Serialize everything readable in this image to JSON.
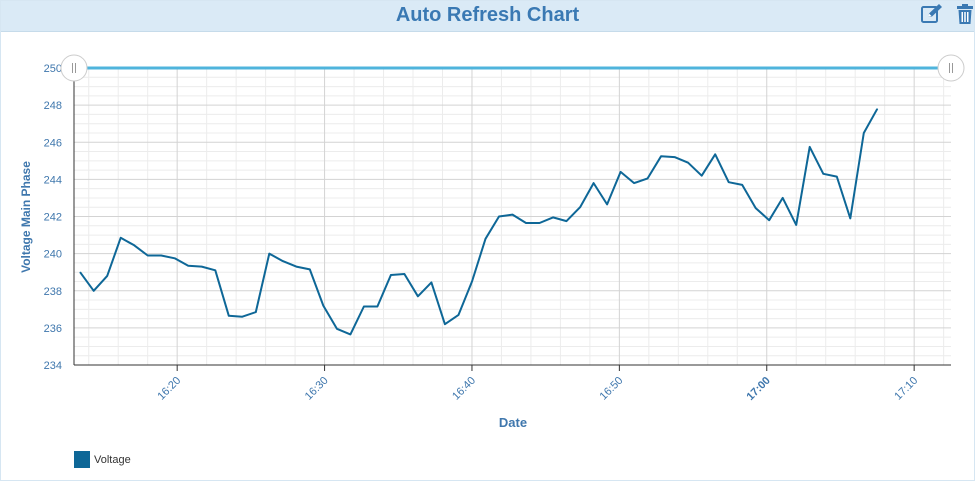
{
  "panel": {
    "title": "Auto Refresh Chart",
    "edit_icon": "edit-icon",
    "delete_icon": "trash-icon"
  },
  "colors": {
    "series": "#0e6797",
    "slider_line": "#4fb4dc",
    "header_bg": "#daeaf6",
    "title": "#3a79b3",
    "axis_text": "#3f77ad",
    "grid_major": "#d3d3d3",
    "grid_minor": "#ececec"
  },
  "chart_data": {
    "type": "line",
    "xlabel": "Date",
    "ylabel": "Voltage Main Phase",
    "ylim": [
      234,
      250
    ],
    "yticks": [
      234,
      236,
      238,
      240,
      242,
      244,
      246,
      248,
      250
    ],
    "xlim": [
      "16:13:00",
      "17:12:30"
    ],
    "xticks": [
      {
        "t": "16:20:00",
        "label": "16:20",
        "bold": false
      },
      {
        "t": "16:30:00",
        "label": "16:30",
        "bold": false
      },
      {
        "t": "16:40:00",
        "label": "16:40",
        "bold": false
      },
      {
        "t": "16:50:00",
        "label": "16:50",
        "bold": false
      },
      {
        "t": "17:00:00",
        "label": "17:00",
        "bold": true
      },
      {
        "t": "17:10:00",
        "label": "17:10",
        "bold": false
      }
    ],
    "range_selector": {
      "from": 250,
      "to": 250
    },
    "grid": true,
    "legend_position": "bottom-left",
    "series": [
      {
        "name": "Voltage",
        "color": "#0e6797",
        "points": [
          [
            "16:13:25",
            239.0
          ],
          [
            "16:14:20",
            238.0
          ],
          [
            "16:15:15",
            238.8
          ],
          [
            "16:16:10",
            240.85
          ],
          [
            "16:17:05",
            240.45
          ],
          [
            "16:18:00",
            239.9
          ],
          [
            "16:18:55",
            239.9
          ],
          [
            "16:19:50",
            239.75
          ],
          [
            "16:20:45",
            239.35
          ],
          [
            "16:21:40",
            239.3
          ],
          [
            "16:22:35",
            239.1
          ],
          [
            "16:23:30",
            236.65
          ],
          [
            "16:24:25",
            236.6
          ],
          [
            "16:25:20",
            236.85
          ],
          [
            "16:26:15",
            240.0
          ],
          [
            "16:27:10",
            239.6
          ],
          [
            "16:28:05",
            239.3
          ],
          [
            "16:29:00",
            239.15
          ],
          [
            "16:29:55",
            237.2
          ],
          [
            "16:30:50",
            235.95
          ],
          [
            "16:31:45",
            235.65
          ],
          [
            "16:32:40",
            237.15
          ],
          [
            "16:33:35",
            237.15
          ],
          [
            "16:34:30",
            238.85
          ],
          [
            "16:35:25",
            238.9
          ],
          [
            "16:36:20",
            237.7
          ],
          [
            "16:37:15",
            238.45
          ],
          [
            "16:38:10",
            236.2
          ],
          [
            "16:39:05",
            236.7
          ],
          [
            "16:40:00",
            238.5
          ],
          [
            "16:40:55",
            240.8
          ],
          [
            "16:41:50",
            242.0
          ],
          [
            "16:42:45",
            242.1
          ],
          [
            "16:43:40",
            241.65
          ],
          [
            "16:44:35",
            241.65
          ],
          [
            "16:45:30",
            241.95
          ],
          [
            "16:46:25",
            241.75
          ],
          [
            "16:47:20",
            242.5
          ],
          [
            "16:48:15",
            243.8
          ],
          [
            "16:49:10",
            242.65
          ],
          [
            "16:50:05",
            244.4
          ],
          [
            "16:51:00",
            243.8
          ],
          [
            "16:51:55",
            244.05
          ],
          [
            "16:52:50",
            245.25
          ],
          [
            "16:53:45",
            245.2
          ],
          [
            "16:54:40",
            244.9
          ],
          [
            "16:55:35",
            244.2
          ],
          [
            "16:56:30",
            245.35
          ],
          [
            "16:57:25",
            243.85
          ],
          [
            "16:58:20",
            243.7
          ],
          [
            "16:59:15",
            242.45
          ],
          [
            "17:00:10",
            241.8
          ],
          [
            "17:01:05",
            243.0
          ],
          [
            "17:02:00",
            241.55
          ],
          [
            "17:02:55",
            245.75
          ],
          [
            "17:03:50",
            244.3
          ],
          [
            "17:04:45",
            244.15
          ],
          [
            "17:05:40",
            241.9
          ],
          [
            "17:06:35",
            246.5
          ],
          [
            "17:07:30",
            247.8
          ]
        ]
      }
    ]
  }
}
